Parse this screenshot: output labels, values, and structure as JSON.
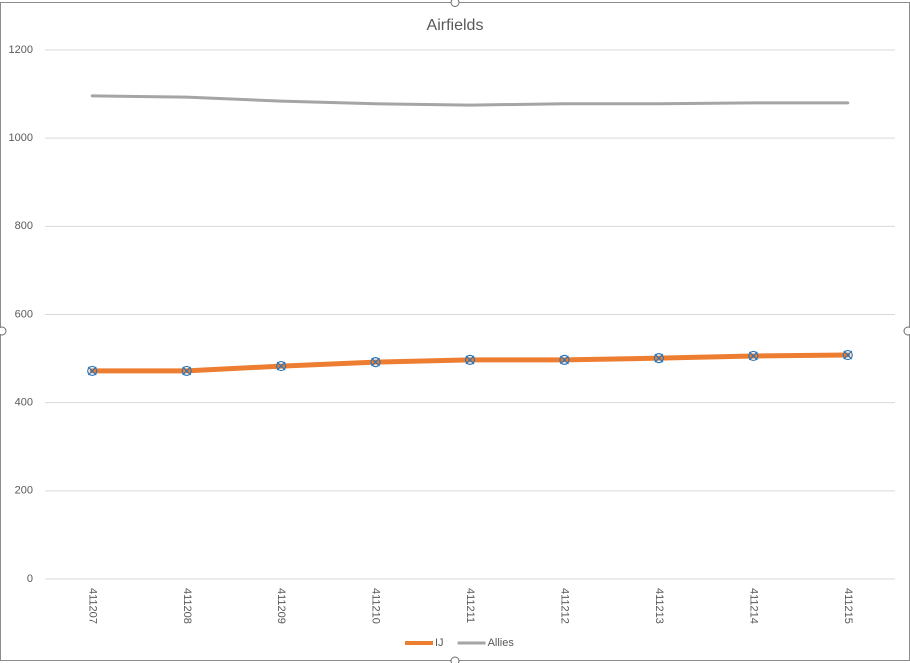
{
  "chart_data": {
    "type": "line",
    "title": "Airfields",
    "categories": [
      "411207",
      "411208",
      "411209",
      "411210",
      "411211",
      "411212",
      "411213",
      "411214",
      "411215"
    ],
    "series": [
      {
        "name": "IJ",
        "color": "#ed7d31",
        "values": [
          472,
          472,
          483,
          492,
          497,
          497,
          501,
          506,
          508
        ]
      },
      {
        "name": "Allies",
        "color": "#a5a5a5",
        "values": [
          1096,
          1093,
          1084,
          1078,
          1075,
          1078,
          1078,
          1080,
          1080
        ]
      }
    ],
    "ylim": [
      0,
      1200
    ],
    "yticks": [
      0,
      200,
      400,
      600,
      800,
      1000,
      1200
    ],
    "grid": true,
    "legend": "bottom"
  }
}
